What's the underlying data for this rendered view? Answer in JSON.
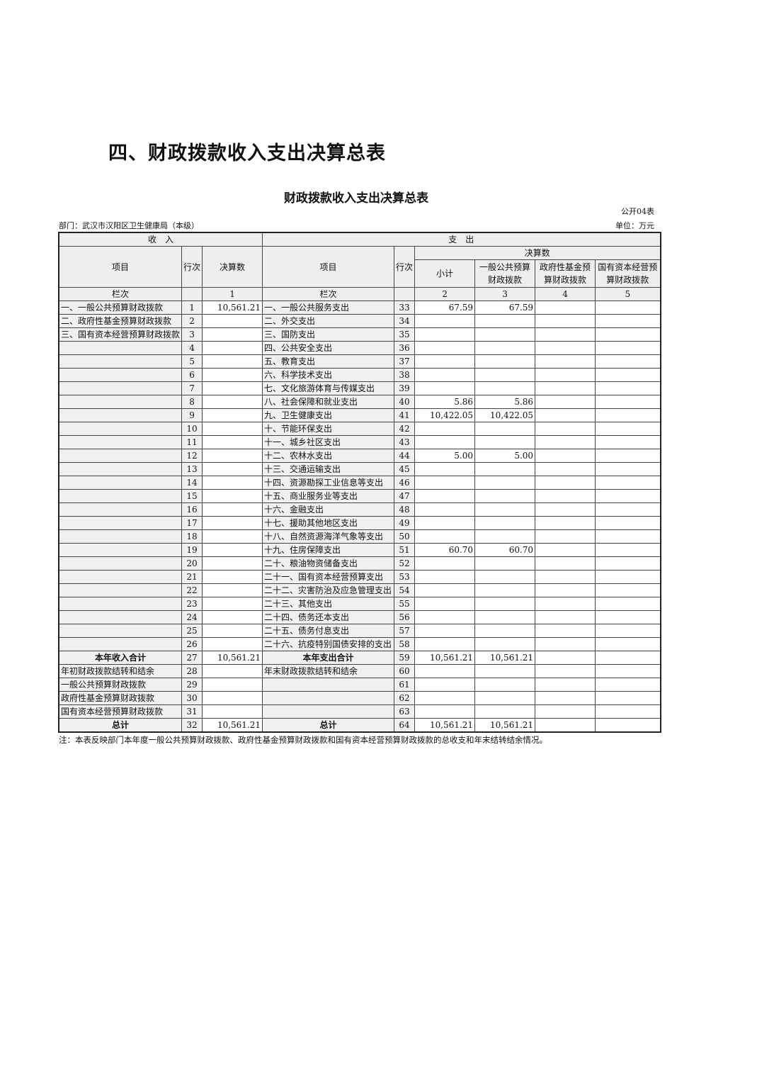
{
  "heading": "四、财政拨款收入支出决算总表",
  "table_title": "财政拨款收入支出决算总表",
  "form_code": "公开04表",
  "department": "部门：武汉市汉阳区卫生健康局（本级）",
  "unit": "单位：万元",
  "headers": {
    "income": "收　入",
    "expense": "支　出",
    "item": "项目",
    "row_no": "行次",
    "amount": "决算数",
    "final_amount": "决算数",
    "subtotal": "小计",
    "general": "一般公共预算财政拨款",
    "fund": "政府性基金预算财政拨款",
    "state": "国有资本经营预算财政拨款",
    "col_index": "栏次",
    "c1": "1",
    "c2": "2",
    "c3": "3",
    "c4": "4",
    "c5": "5"
  },
  "rows": [
    [
      "一、一般公共预算财政拨款",
      "1",
      "10,561.21",
      "一、一般公共服务支出",
      "33",
      "67.59",
      "67.59",
      "",
      ""
    ],
    [
      "二、政府性基金预算财政拨款",
      "2",
      "",
      "二、外交支出",
      "34",
      "",
      "",
      "",
      ""
    ],
    [
      "三、国有资本经营预算财政拨款",
      "3",
      "",
      "三、国防支出",
      "35",
      "",
      "",
      "",
      ""
    ],
    [
      "",
      "4",
      "",
      "四、公共安全支出",
      "36",
      "",
      "",
      "",
      ""
    ],
    [
      "",
      "5",
      "",
      "五、教育支出",
      "37",
      "",
      "",
      "",
      ""
    ],
    [
      "",
      "6",
      "",
      "六、科学技术支出",
      "38",
      "",
      "",
      "",
      ""
    ],
    [
      "",
      "7",
      "",
      "七、文化旅游体育与传媒支出",
      "39",
      "",
      "",
      "",
      ""
    ],
    [
      "",
      "8",
      "",
      "八、社会保障和就业支出",
      "40",
      "5.86",
      "5.86",
      "",
      ""
    ],
    [
      "",
      "9",
      "",
      "九、卫生健康支出",
      "41",
      "10,422.05",
      "10,422.05",
      "",
      ""
    ],
    [
      "",
      "10",
      "",
      "十、节能环保支出",
      "42",
      "",
      "",
      "",
      ""
    ],
    [
      "",
      "11",
      "",
      "十一、城乡社区支出",
      "43",
      "",
      "",
      "",
      ""
    ],
    [
      "",
      "12",
      "",
      "十二、农林水支出",
      "44",
      "5.00",
      "5.00",
      "",
      ""
    ],
    [
      "",
      "13",
      "",
      "十三、交通运输支出",
      "45",
      "",
      "",
      "",
      ""
    ],
    [
      "",
      "14",
      "",
      "十四、资源勘探工业信息等支出",
      "46",
      "",
      "",
      "",
      ""
    ],
    [
      "",
      "15",
      "",
      "十五、商业服务业等支出",
      "47",
      "",
      "",
      "",
      ""
    ],
    [
      "",
      "16",
      "",
      "十六、金融支出",
      "48",
      "",
      "",
      "",
      ""
    ],
    [
      "",
      "17",
      "",
      "十七、援助其他地区支出",
      "49",
      "",
      "",
      "",
      ""
    ],
    [
      "",
      "18",
      "",
      "十八、自然资源海洋气象等支出",
      "50",
      "",
      "",
      "",
      ""
    ],
    [
      "",
      "19",
      "",
      "十九、住房保障支出",
      "51",
      "60.70",
      "60.70",
      "",
      ""
    ],
    [
      "",
      "20",
      "",
      "二十、粮油物资储备支出",
      "52",
      "",
      "",
      "",
      ""
    ],
    [
      "",
      "21",
      "",
      "二十一、国有资本经营预算支出",
      "53",
      "",
      "",
      "",
      ""
    ],
    [
      "",
      "22",
      "",
      "二十二、灾害防治及应急管理支出",
      "54",
      "",
      "",
      "",
      ""
    ],
    [
      "",
      "23",
      "",
      "二十三、其他支出",
      "55",
      "",
      "",
      "",
      ""
    ],
    [
      "",
      "24",
      "",
      "二十四、债务还本支出",
      "56",
      "",
      "",
      "",
      ""
    ],
    [
      "",
      "25",
      "",
      "二十五、债务付息支出",
      "57",
      "",
      "",
      "",
      ""
    ],
    [
      "",
      "26",
      "",
      "二十六、抗疫特别国债安排的支出",
      "58",
      "",
      "",
      "",
      ""
    ],
    [
      "本年收入合计",
      "27",
      "10,561.21",
      "本年支出合计",
      "59",
      "10,561.21",
      "10,561.21",
      "",
      ""
    ],
    [
      "年初财政拨款结转和结余",
      "28",
      "",
      "年末财政拨款结转和结余",
      "60",
      "",
      "",
      "",
      ""
    ],
    [
      " 一般公共预算财政拨款",
      "29",
      "",
      "",
      "61",
      "",
      "",
      "",
      ""
    ],
    [
      " 政府性基金预算财政拨款",
      "30",
      "",
      "",
      "62",
      "",
      "",
      "",
      ""
    ],
    [
      " 国有资本经营预算财政拨款",
      "31",
      "",
      "",
      "63",
      "",
      "",
      "",
      ""
    ],
    [
      "总计",
      "32",
      "10,561.21",
      "总计",
      "64",
      "10,561.21",
      "10,561.21",
      "",
      ""
    ]
  ],
  "note": "注：本表反映部门本年度一般公共预算财政拨款、政府性基金预算财政拨款和国有资本经营预算财政拨款的总收支和年末结转结余情况。"
}
